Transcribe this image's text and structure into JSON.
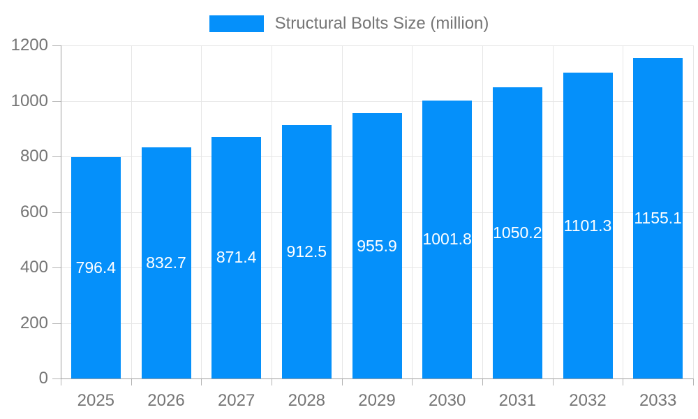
{
  "legend": {
    "label": "Structural Bolts Size (million)"
  },
  "colors": {
    "bar": "#0590fa",
    "grid": "#e6e6e6",
    "axis": "#9e9e9e",
    "tick": "#b3b3b3",
    "tick_text": "#757575",
    "value_text": "#ffffff"
  },
  "chart_data": {
    "type": "bar",
    "title": "Structural Bolts Size (million)",
    "categories": [
      "2025",
      "2026",
      "2027",
      "2028",
      "2029",
      "2030",
      "2031",
      "2032",
      "2033"
    ],
    "values": [
      796.4,
      832.7,
      871.4,
      912.5,
      955.9,
      1001.8,
      1050.2,
      1101.3,
      1155.1
    ],
    "value_labels": [
      "796.4",
      "832.7",
      "871.4",
      "912.5",
      "955.9",
      "1001.8",
      "1050.2",
      "1101.3",
      "1155.1"
    ],
    "xlabel": "",
    "ylabel": "",
    "ylim": [
      0,
      1200
    ],
    "ytick_step": 200,
    "ytick_labels": [
      "0",
      "200",
      "400",
      "600",
      "800",
      "1000",
      "1200"
    ],
    "grid": true,
    "legend_position": "top"
  }
}
